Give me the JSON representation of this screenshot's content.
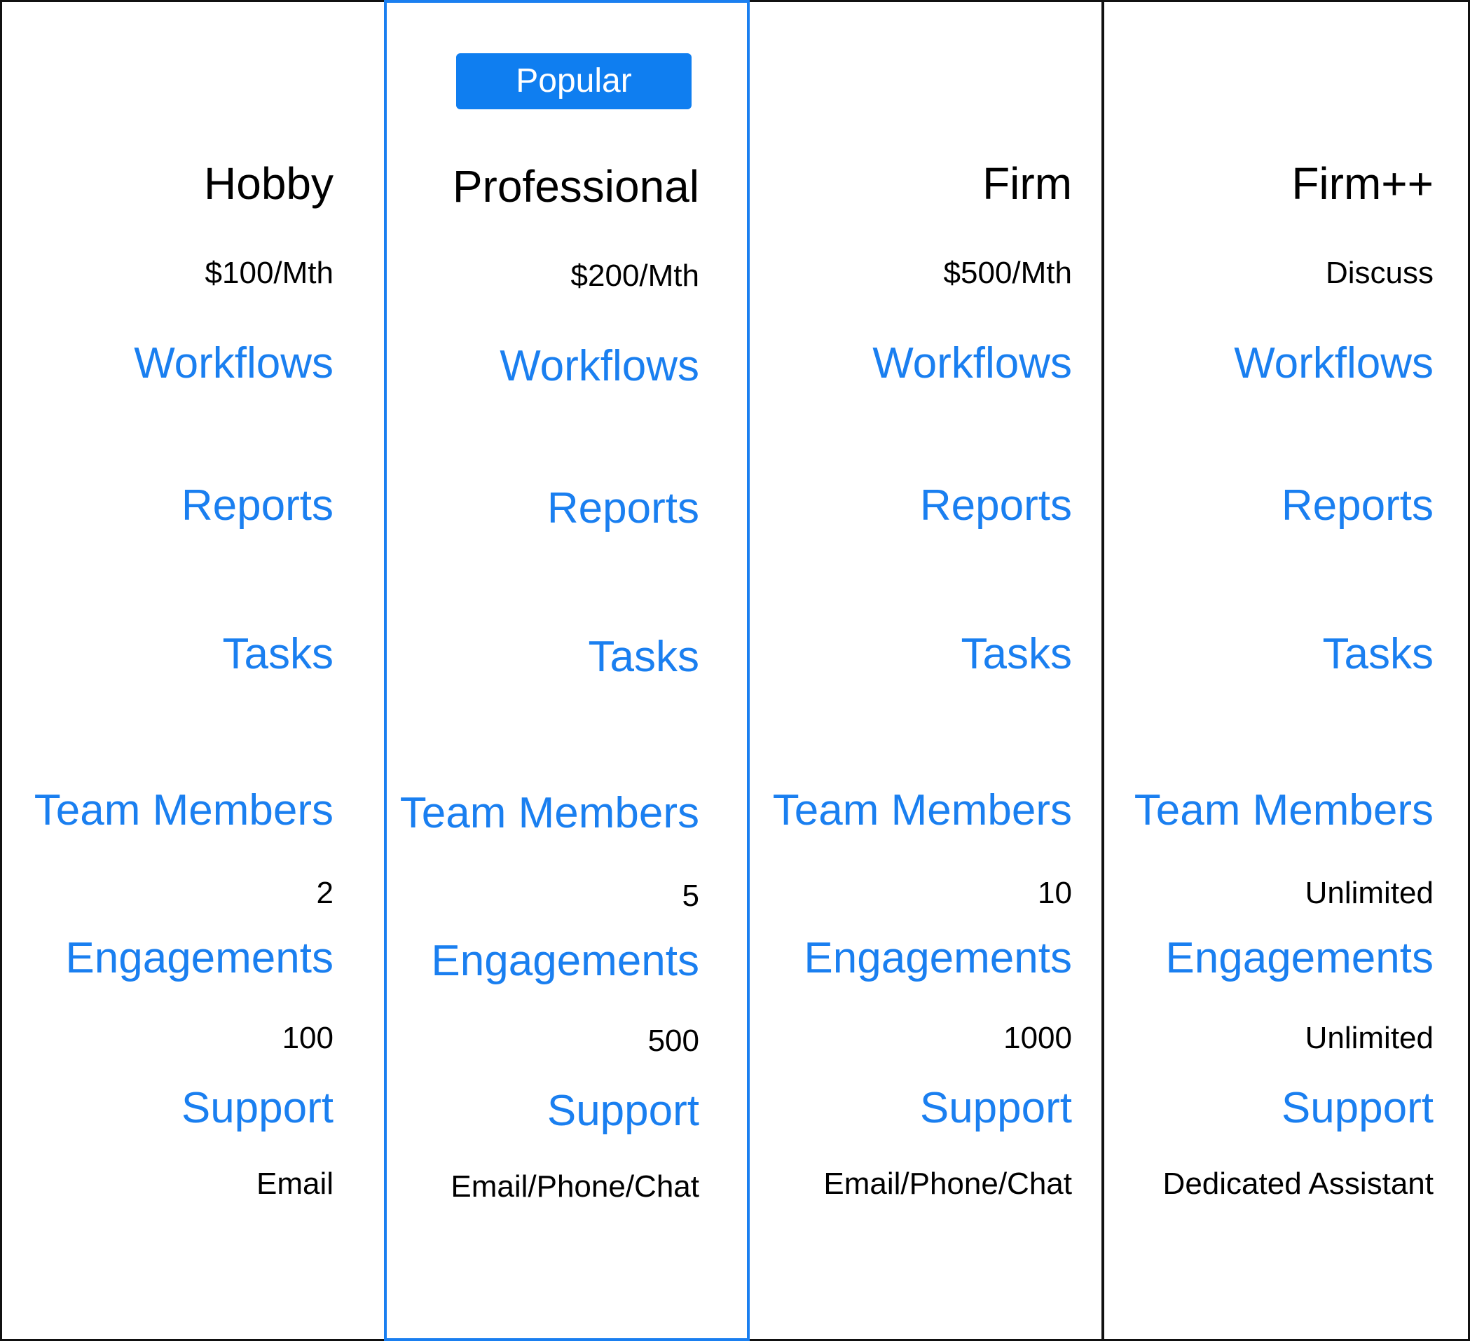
{
  "badge": "Popular",
  "plans": [
    {
      "name": "Hobby",
      "price": "$100/Mth",
      "features": {
        "workflows": "Workflows",
        "reports": "Reports",
        "tasks": "Tasks",
        "team_members": "Team Members",
        "engagements": "Engagements",
        "support": "Support"
      },
      "team_members_value": "2",
      "engagements_value": "100",
      "support_value": "Email"
    },
    {
      "name": "Professional",
      "price": "$200/Mth",
      "features": {
        "workflows": "Workflows",
        "reports": "Reports",
        "tasks": "Tasks",
        "team_members": "Team Members",
        "engagements": "Engagements",
        "support": "Support"
      },
      "team_members_value": "5",
      "engagements_value": "500",
      "support_value": "Email/Phone/Chat"
    },
    {
      "name": "Firm",
      "price": "$500/Mth",
      "features": {
        "workflows": "Workflows",
        "reports": "Reports",
        "tasks": "Tasks",
        "team_members": "Team Members",
        "engagements": "Engagements",
        "support": "Support"
      },
      "team_members_value": "10",
      "engagements_value": "1000",
      "support_value": "Email/Phone/Chat"
    },
    {
      "name": "Firm++",
      "price": "Discuss",
      "features": {
        "workflows": "Workflows",
        "reports": "Reports",
        "tasks": "Tasks",
        "team_members": "Team Members",
        "engagements": "Engagements",
        "support": "Support"
      },
      "team_members_value": "Unlimited",
      "engagements_value": "Unlimited",
      "support_value": "Dedicated Assistant"
    }
  ],
  "colors": {
    "accent": "#1a7ff0",
    "badge_bg": "#0f7ef0",
    "text": "#000000",
    "border": "#111111"
  }
}
